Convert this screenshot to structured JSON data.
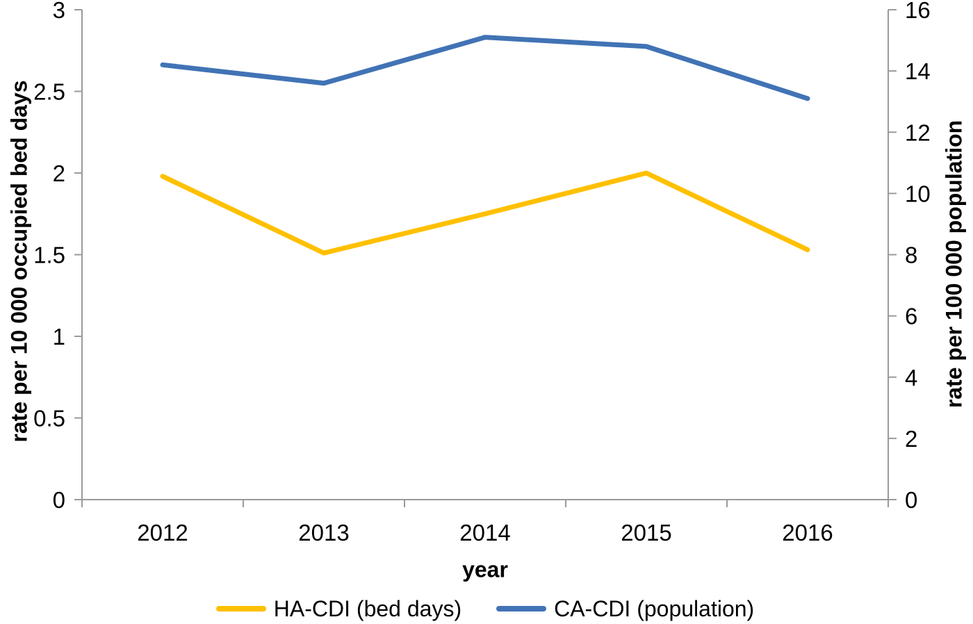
{
  "chart_data": {
    "type": "line",
    "title": "",
    "grid": false,
    "legend_position": "bottom",
    "x": {
      "label": "year",
      "categories": [
        "2012",
        "2013",
        "2014",
        "2015",
        "2016"
      ]
    },
    "left_axis": {
      "label": "rate per 10 000 occupied bed days",
      "min": 0,
      "max": 3,
      "ticks": [
        0,
        0.5,
        1,
        1.5,
        2,
        2.5,
        3
      ]
    },
    "right_axis": {
      "label": "rate per 100 000 population",
      "min": 0,
      "max": 16,
      "ticks": [
        0,
        2,
        4,
        6,
        8,
        10,
        12,
        14,
        16
      ]
    },
    "series": [
      {
        "name": "HA-CDI (bed days)",
        "axis": "left",
        "color": "#FFC000",
        "values": [
          1.98,
          1.51,
          1.75,
          2.0,
          1.53
        ]
      },
      {
        "name": "CA-CDI (population)",
        "axis": "right",
        "color": "#4173B5",
        "values": [
          14.2,
          13.6,
          15.1,
          14.8,
          13.1
        ]
      }
    ]
  },
  "legend": {
    "items": [
      {
        "label": "HA-CDI (bed days)",
        "color": "#FFC000"
      },
      {
        "label": "CA-CDI (population)",
        "color": "#4173B5"
      }
    ]
  },
  "colors": {
    "axis": "#9a9a9a",
    "text": "#000000",
    "background": "#FFFFFF"
  }
}
